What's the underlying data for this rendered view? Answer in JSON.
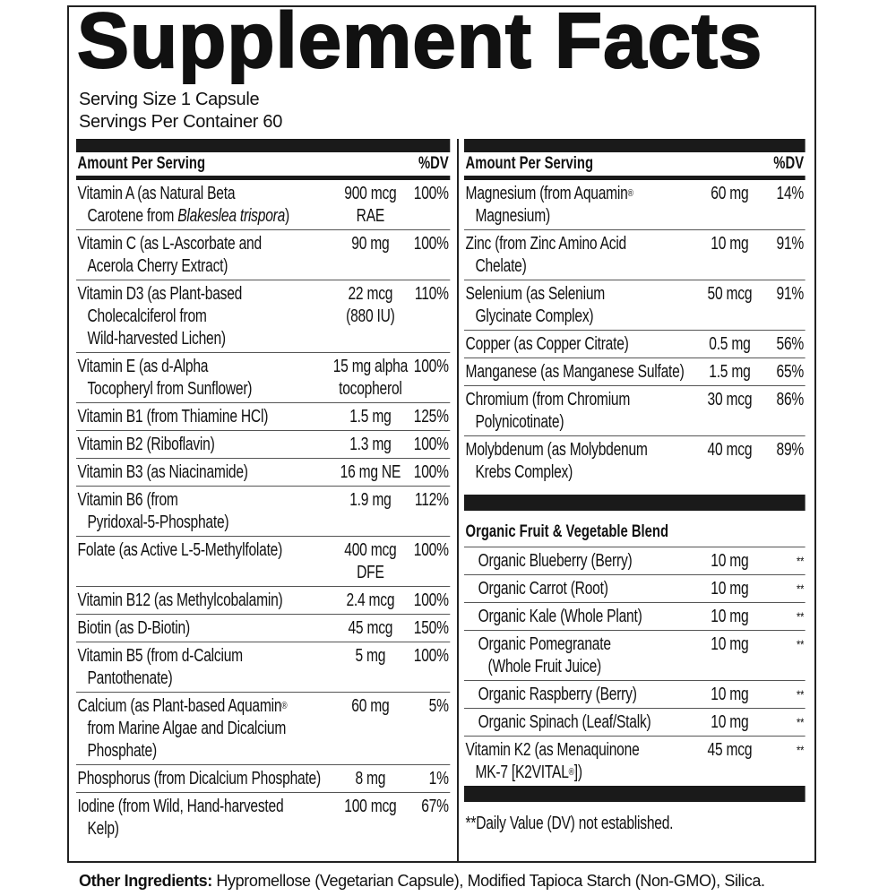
{
  "title": "Supplement Facts",
  "serving_size": "Serving Size 1 Capsule",
  "servings_per_container": "Servings Per Container 60",
  "header": {
    "amount": "Amount Per Serving",
    "dv": "%DV"
  },
  "left": [
    {
      "n1": "Vitamin A (as Natural Beta",
      "n2": "Carotene from Blakeslea trispora)",
      "amt": "900 mcg\nRAE",
      "dv": "100%"
    },
    {
      "n1": "Vitamin C (as L-Ascorbate and",
      "n2": "Acerola Cherry Extract)",
      "amt": "90 mg",
      "dv": "100%"
    },
    {
      "n1": "Vitamin D3 (as Plant-based",
      "n2": "Cholecalciferol from\nWild-harvested Lichen)",
      "amt": "22 mcg\n(880 IU)",
      "dv": "110%"
    },
    {
      "n1": "Vitamin E (as d-Alpha",
      "n2": "Tocopheryl from Sunflower)",
      "amt": "15 mg alpha\ntocopherol",
      "dv": "100%"
    },
    {
      "n1": "Vitamin B1 (from Thiamine HCl)",
      "n2": "",
      "amt": "1.5 mg",
      "dv": "125%"
    },
    {
      "n1": "Vitamin B2 (Riboflavin)",
      "n2": "",
      "amt": "1.3 mg",
      "dv": "100%"
    },
    {
      "n1": "Vitamin B3 (as Niacinamide)",
      "n2": "",
      "amt": "16 mg NE",
      "dv": "100%"
    },
    {
      "n1": "Vitamin B6 (from",
      "n2": "Pyridoxal-5-Phosphate)",
      "amt": "1.9 mg",
      "dv": "112%"
    },
    {
      "n1": "Folate (as Active L-5-Methylfolate)",
      "n2": "",
      "amt": "400 mcg\nDFE",
      "dv": "100%"
    },
    {
      "n1": "Vitamin B12 (as Methylcobalamin)",
      "n2": "",
      "amt": "2.4 mcg",
      "dv": "100%"
    },
    {
      "n1": "Biotin (as D-Biotin)",
      "n2": "",
      "amt": "45 mcg",
      "dv": "150%"
    },
    {
      "n1": "Vitamin B5 (from d-Calcium",
      "n2": "Pantothenate)",
      "amt": "5 mg",
      "dv": "100%"
    },
    {
      "n1": "Calcium (as Plant-based Aquamin®",
      "n2": "from Marine Algae and Dicalcium\nPhosphate)",
      "amt": "60 mg",
      "dv": "5%"
    },
    {
      "n1": "Phosphorus (from Dicalcium Phosphate)",
      "n2": "",
      "amt": "8 mg",
      "dv": "1%"
    },
    {
      "n1": "Iodine (from Wild, Hand-harvested",
      "n2": "Kelp)",
      "amt": "100 mcg",
      "dv": "67%"
    }
  ],
  "right": [
    {
      "n1": "Magnesium (from Aquamin®",
      "n2": "Magnesium)",
      "amt": "60 mg",
      "dv": "14%"
    },
    {
      "n1": "Zinc (from Zinc Amino Acid",
      "n2": "Chelate)",
      "amt": "10 mg",
      "dv": "91%"
    },
    {
      "n1": "Selenium (as Selenium",
      "n2": "Glycinate Complex)",
      "amt": "50 mcg",
      "dv": "91%"
    },
    {
      "n1": "Copper (as Copper Citrate)",
      "n2": "",
      "amt": "0.5 mg",
      "dv": "56%"
    },
    {
      "n1": "Manganese (as Manganese Sulfate)",
      "n2": "",
      "amt": "1.5 mg",
      "dv": "65%"
    },
    {
      "n1": "Chromium (from Chromium",
      "n2": "Polynicotinate)",
      "amt": "30 mcg",
      "dv": "86%"
    },
    {
      "n1": "Molybdenum (as Molybdenum",
      "n2": "Krebs Complex)",
      "amt": "40 mcg",
      "dv": "89%"
    }
  ],
  "blend_title": "Organic Fruit & Vegetable Blend",
  "blend": [
    {
      "n1": "Organic Blueberry (Berry)",
      "n2": "",
      "amt": "10 mg",
      "dv": "**"
    },
    {
      "n1": "Organic Carrot (Root)",
      "n2": "",
      "amt": "10 mg",
      "dv": "**"
    },
    {
      "n1": "Organic Kale (Whole Plant)",
      "n2": "",
      "amt": "10 mg",
      "dv": "**"
    },
    {
      "n1": "Organic Pomegranate",
      "n2": "(Whole Fruit Juice)",
      "amt": "10 mg",
      "dv": "**"
    },
    {
      "n1": "Organic Raspberry (Berry)",
      "n2": "",
      "amt": "10 mg",
      "dv": "**"
    },
    {
      "n1": "Organic Spinach (Leaf/Stalk)",
      "n2": "",
      "amt": "10 mg",
      "dv": "**"
    }
  ],
  "k2": {
    "n1": "Vitamin K2 (as Menaquinone",
    "n2": "MK-7 [K2VITAL®])",
    "amt": "45 mcg",
    "dv": "**"
  },
  "footnote": "**Daily Value (DV) not established.",
  "other_label": "Other Ingredients:",
  "other_text": " Hypromellose (Vegetarian Capsule), Modified Tapioca Starch (Non-GMO), Silica."
}
